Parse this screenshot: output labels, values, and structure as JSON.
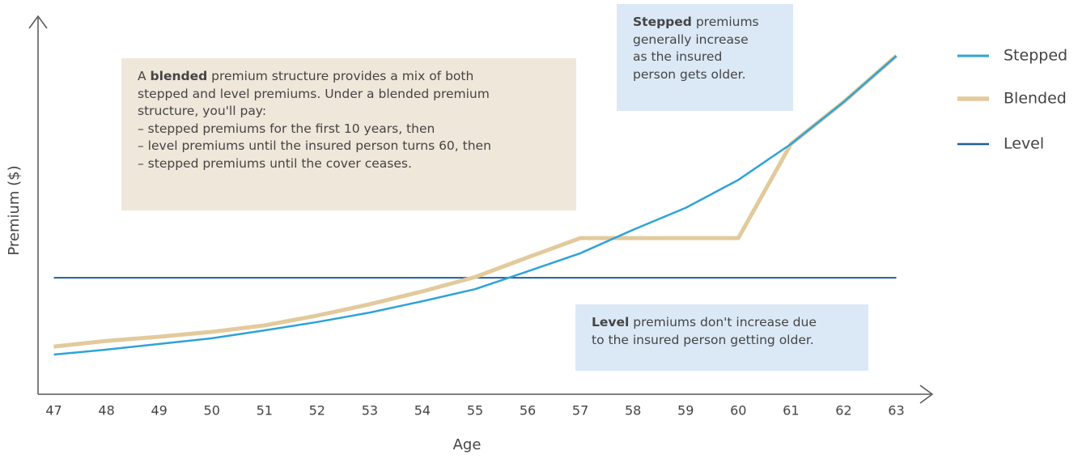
{
  "chart_data": {
    "type": "line",
    "xlabel": "Age",
    "ylabel": "Premium ($)",
    "x": [
      47,
      48,
      49,
      50,
      51,
      52,
      53,
      54,
      55,
      56,
      57,
      58,
      59,
      60,
      61,
      62,
      63
    ],
    "xlim": [
      46.7,
      63.5
    ],
    "xticks": [
      47,
      48,
      49,
      50,
      51,
      52,
      53,
      54,
      55,
      56,
      57,
      58,
      59,
      60,
      61,
      62,
      63
    ],
    "ylim": [
      0,
      100
    ],
    "legend": "right",
    "series": [
      {
        "name": "Stepped",
        "color": "#2ea3d6",
        "values": [
          10.5,
          11.8,
          13.3,
          14.8,
          16.9,
          19.1,
          21.6,
          24.6,
          27.8,
          32.5,
          37.3,
          43.5,
          49.3,
          56.7,
          66.2,
          77.3,
          89.5
        ]
      },
      {
        "name": "Blended",
        "color": "#e2ca9c",
        "values": [
          12.6,
          14.1,
          15.2,
          16.5,
          18.2,
          20.8,
          23.8,
          27.2,
          31.0,
          36.2,
          41.3,
          41.3,
          41.3,
          41.3,
          66.2,
          77.3,
          89.5
        ]
      },
      {
        "name": "Level",
        "color": "#1f5f99",
        "values": [
          30.8,
          30.8,
          30.8,
          30.8,
          30.8,
          30.8,
          30.8,
          30.8,
          30.8,
          30.8,
          30.8,
          30.8,
          30.8,
          30.8,
          30.8,
          30.8,
          30.8
        ]
      }
    ],
    "annotations": [
      {
        "color": "#efe7da",
        "lines": [
          [
            "A ",
            {
              "text": "blended",
              "bold": true
            },
            " premium structure provides a mix of both"
          ],
          [
            "stepped and level premiums. Under a blended premium"
          ],
          [
            "structure, you'll pay:"
          ],
          [
            "– stepped premiums for the first 10 years, then"
          ],
          [
            "– level premiums until the insured person turns 60, then"
          ],
          [
            "– stepped premiums until the cover ceases."
          ]
        ]
      },
      {
        "color": "#dbe9f6",
        "lines": [
          [
            {
              "text": "Stepped",
              "bold": true
            },
            " premiums"
          ],
          [
            "generally increase"
          ],
          [
            "as the insured"
          ],
          [
            "person gets older."
          ]
        ]
      },
      {
        "color": "#dbe9f6",
        "lines": [
          [
            {
              "text": "Level",
              "bold": true
            },
            " premiums don't increase due"
          ],
          [
            "to the insured person getting older."
          ]
        ]
      }
    ]
  }
}
